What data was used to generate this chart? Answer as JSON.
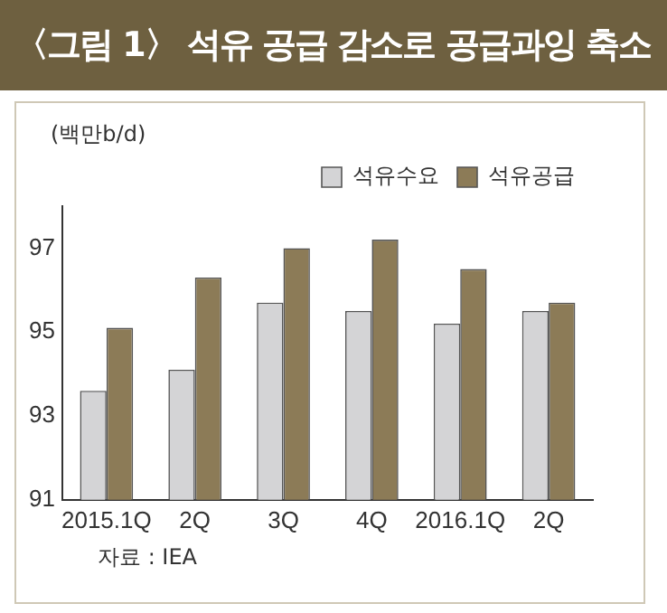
{
  "chart_data": {
    "type": "bar",
    "title": "〈그림 1〉 석유 공급 감소로 공급과잉 축소",
    "ylabel": "(백만b/d)",
    "annotations": [
      "자료 : IEA"
    ],
    "categories": [
      "2015.1Q",
      "2Q",
      "3Q",
      "4Q",
      "2016.1Q",
      "2Q"
    ],
    "series": [
      {
        "name": "석유수요",
        "color": "#d4d4d6",
        "values": [
          93.6,
          94.1,
          95.7,
          95.5,
          95.2,
          95.5
        ]
      },
      {
        "name": "석유공급",
        "color": "#8c7b57",
        "values": [
          95.1,
          96.3,
          97.0,
          97.2,
          96.5,
          95.7
        ]
      }
    ],
    "ylim": [
      91,
      98
    ],
    "yticks": [
      91,
      93,
      95,
      97
    ],
    "grid": false,
    "legend": "top right"
  }
}
